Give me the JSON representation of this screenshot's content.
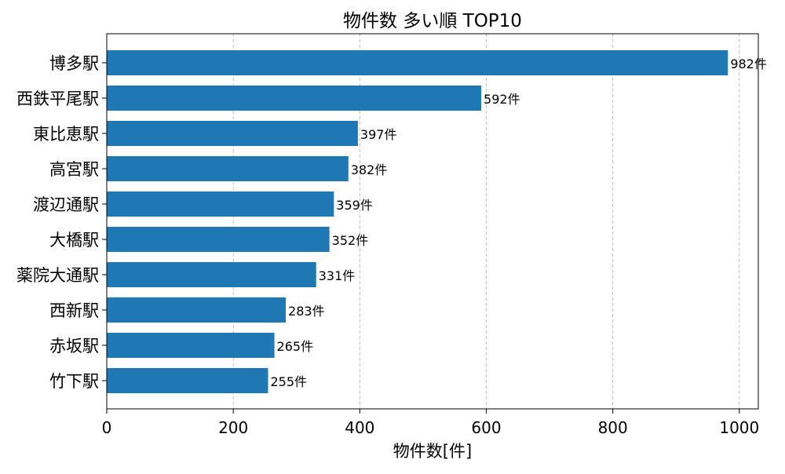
{
  "chart_data": {
    "type": "bar",
    "orientation": "horizontal",
    "title": "物件数 多い順 TOP10",
    "xlabel": "物件数[件]",
    "ylabel": "",
    "xlim": [
      0,
      1030
    ],
    "xticks": [
      0,
      200,
      400,
      600,
      800,
      1000
    ],
    "grid": "x-dashed",
    "bar_color": "#1f77b4",
    "value_suffix": "件",
    "categories": [
      "博多駅",
      "西鉄平尾駅",
      "東比恵駅",
      "高宮駅",
      "渡辺通駅",
      "大橋駅",
      "薬院大通駅",
      "西新駅",
      "赤坂駅",
      "竹下駅"
    ],
    "values": [
      982,
      592,
      397,
      382,
      359,
      352,
      331,
      283,
      265,
      255
    ]
  }
}
